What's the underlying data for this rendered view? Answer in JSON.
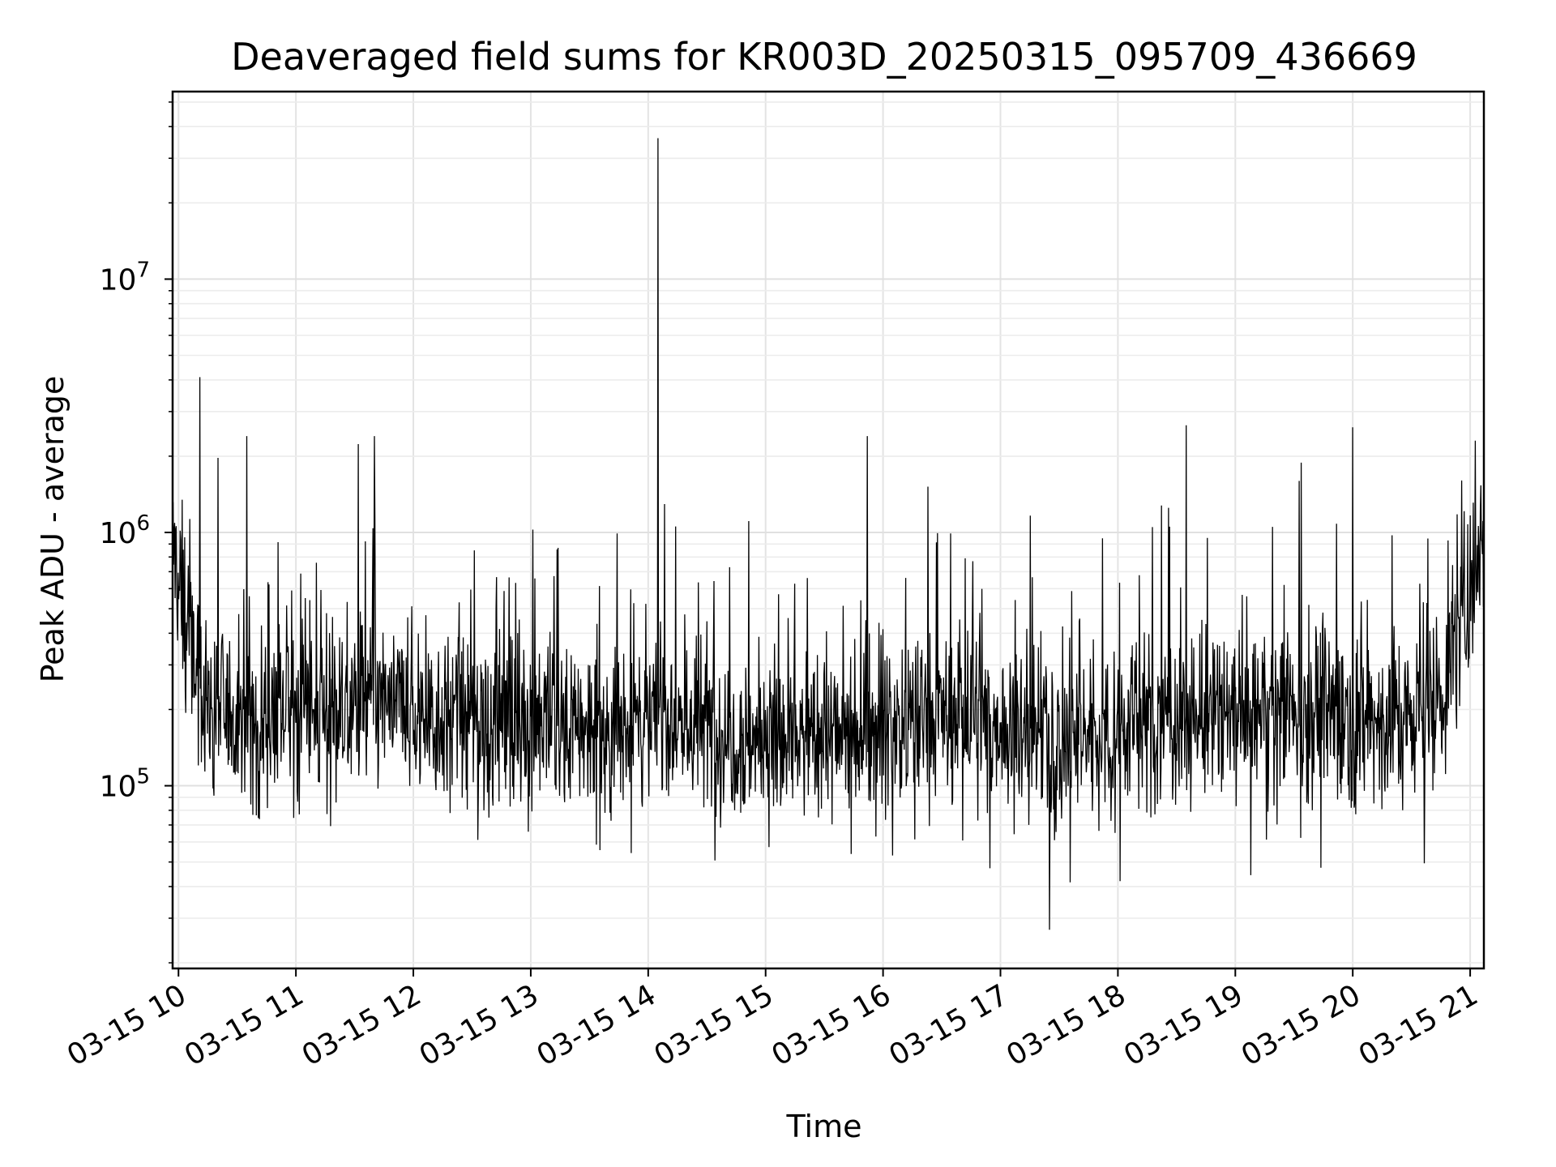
{
  "chart_data": {
    "type": "line",
    "title": "Deaveraged field sums for KR003D_20250315_095709_436669",
    "xlabel": "Time",
    "ylabel": "Peak ADU - average",
    "x_range_hours": [
      "2025-03-15 09:57",
      "2025-03-15 21:07"
    ],
    "x_ticks": [
      "03-15 10",
      "03-15 11",
      "03-15 12",
      "03-15 13",
      "03-15 14",
      "03-15 15",
      "03-15 16",
      "03-15 17",
      "03-15 18",
      "03-15 19",
      "03-15 20",
      "03-15 21"
    ],
    "y_scale": "log",
    "y_ticks": [
      {
        "base": "10",
        "exp": "5",
        "value": 100000
      },
      {
        "base": "10",
        "exp": "6",
        "value": 1000000
      },
      {
        "base": "10",
        "exp": "7",
        "value": 10000000
      }
    ],
    "ylim": [
      19000,
      55000000
    ],
    "grid": true,
    "line_color": "#000000",
    "series": [
      {
        "x": [
          "2025-03-15 09:57",
          "2025-03-15 10:01",
          "2025-03-15 10:05",
          "2025-03-15 10:10",
          "2025-03-15 10:15",
          "2025-03-15 10:20",
          "2025-03-15 10:30",
          "2025-03-15 10:40",
          "2025-03-15 10:50",
          "2025-03-15 11:00",
          "2025-03-15 11:10",
          "2025-03-15 11:20",
          "2025-03-15 11:30",
          "2025-03-15 11:40",
          "2025-03-15 11:50",
          "2025-03-15 12:00",
          "2025-03-15 12:15",
          "2025-03-15 12:30",
          "2025-03-15 12:45",
          "2025-03-15 13:00",
          "2025-03-15 13:15",
          "2025-03-15 13:30",
          "2025-03-15 13:45",
          "2025-03-15 14:00",
          "2025-03-15 14:05",
          "2025-03-15 14:15",
          "2025-03-15 14:30",
          "2025-03-15 14:45",
          "2025-03-15 15:00",
          "2025-03-15 15:15",
          "2025-03-15 15:30",
          "2025-03-15 15:45",
          "2025-03-15 15:52",
          "2025-03-15 16:00",
          "2025-03-15 16:15",
          "2025-03-15 16:30",
          "2025-03-15 16:45",
          "2025-03-15 17:00",
          "2025-03-15 17:15",
          "2025-03-15 17:30",
          "2025-03-15 17:45",
          "2025-03-15 18:00",
          "2025-03-15 18:15",
          "2025-03-15 18:30",
          "2025-03-15 18:45",
          "2025-03-15 19:00",
          "2025-03-15 19:15",
          "2025-03-15 19:30",
          "2025-03-15 19:45",
          "2025-03-15 20:00",
          "2025-03-15 20:15",
          "2025-03-15 20:30",
          "2025-03-15 20:45",
          "2025-03-15 21:00",
          "2025-03-15 21:07"
        ],
        "y": [
          900000,
          600000,
          400000,
          250000,
          220000,
          200000,
          190000,
          180000,
          200000,
          210000,
          190000,
          200000,
          210000,
          220000,
          200000,
          190000,
          190000,
          180000,
          180000,
          190000,
          170000,
          160000,
          170000,
          180000,
          200000,
          180000,
          170000,
          160000,
          150000,
          160000,
          150000,
          160000,
          180000,
          170000,
          180000,
          190000,
          180000,
          170000,
          160000,
          150000,
          160000,
          170000,
          180000,
          190000,
          180000,
          190000,
          200000,
          210000,
          200000,
          190000,
          180000,
          190000,
          220000,
          600000,
          1200000
        ]
      }
    ],
    "spikes": [
      {
        "x": "2025-03-15 14:05",
        "y": 36000000
      },
      {
        "x": "2025-03-15 10:11",
        "y": 4100000
      },
      {
        "x": "2025-03-15 15:52",
        "y": 2400000
      },
      {
        "x": "2025-03-15 18:35",
        "y": 2650000
      },
      {
        "x": "2025-03-15 20:00",
        "y": 2600000
      },
      {
        "x": "2025-03-15 11:40",
        "y": 2400000
      },
      {
        "x": "2025-03-15 10:35",
        "y": 2400000
      }
    ],
    "min_x_label": "2025-03-15 17:25",
    "min_y": 27000
  }
}
